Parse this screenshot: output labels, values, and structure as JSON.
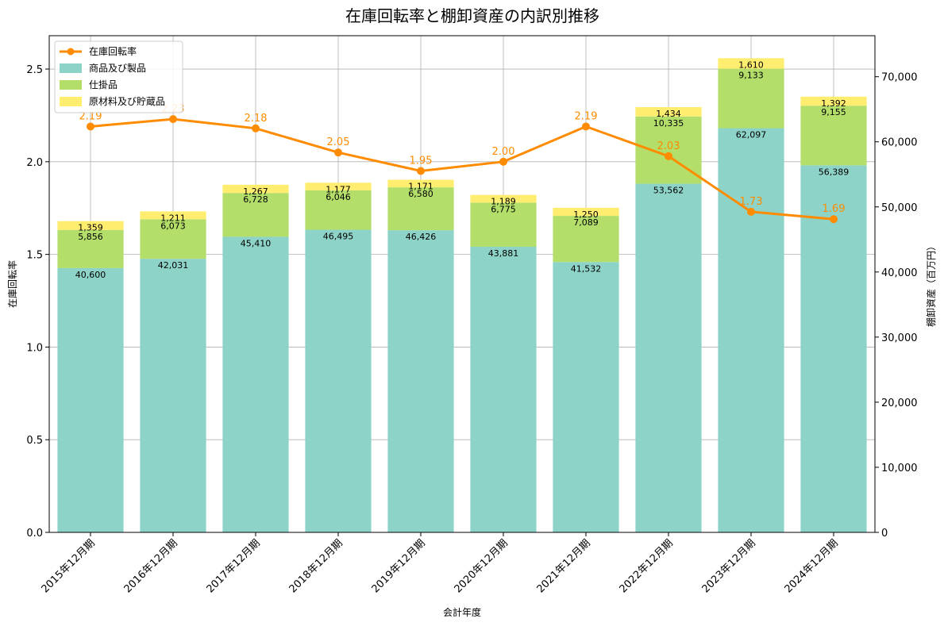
{
  "chart_data": {
    "type": "bar",
    "title": "在庫回転率と棚卸資産の内訳別推移",
    "xlabel": "会計年度",
    "ylabel_left": "在庫回転率",
    "ylabel_right": "棚卸資産（百万円）",
    "categories": [
      "2015年12月期",
      "2016年12月期",
      "2017年12月期",
      "2018年12月期",
      "2019年12月期",
      "2020年12月期",
      "2021年12月期",
      "2022年12月期",
      "2023年12月期",
      "2024年12月期"
    ],
    "series": [
      {
        "name": "商品及び製品",
        "kind": "bar",
        "axis": "right",
        "color": "#8dd3c7",
        "values": [
          40600,
          42031,
          45410,
          46495,
          46426,
          43881,
          41532,
          53562,
          62097,
          56389
        ],
        "labels": [
          "40,600",
          "42,031",
          "45,410",
          "46,495",
          "46,426",
          "43,881",
          "41,532",
          "53,562",
          "62,097",
          "56,389"
        ]
      },
      {
        "name": "仕掛品",
        "kind": "bar",
        "axis": "right",
        "color": "#b3de69",
        "values": [
          5856,
          6073,
          6728,
          6046,
          6580,
          6775,
          7089,
          10335,
          9133,
          9155
        ],
        "labels": [
          "5,856",
          "6,073",
          "6,728",
          "6,046",
          "6,580",
          "6,775",
          "7,089",
          "10,335",
          "9,133",
          "9,155"
        ]
      },
      {
        "name": "原材料及び貯蔵品",
        "kind": "bar",
        "axis": "right",
        "color": "#ffed6f",
        "values": [
          1359,
          1211,
          1267,
          1177,
          1171,
          1189,
          1250,
          1434,
          1610,
          1392
        ],
        "labels": [
          "1,359",
          "1,211",
          "1,267",
          "1,177",
          "1,171",
          "1,189",
          "1,250",
          "1,434",
          "1,610",
          "1,392"
        ]
      },
      {
        "name": "在庫回転率",
        "kind": "line",
        "axis": "left",
        "color": "#ff8c00",
        "values": [
          2.19,
          2.23,
          2.18,
          2.05,
          1.95,
          2.0,
          2.19,
          2.03,
          1.73,
          1.69
        ],
        "labels": [
          "2.19",
          "2.23",
          "2.18",
          "2.05",
          "1.95",
          "2.00",
          "2.19",
          "2.03",
          "1.73",
          "1.69"
        ]
      }
    ],
    "ylim_left": [
      0,
      2.68
    ],
    "ylim_right": [
      0,
      76300
    ],
    "yticks_left": [
      "0.0",
      "0.5",
      "1.0",
      "1.5",
      "2.0",
      "2.5"
    ],
    "yticks_left_values": [
      0,
      0.5,
      1.0,
      1.5,
      2.0,
      2.5
    ],
    "yticks_right": [
      "0",
      "10,000",
      "20,000",
      "30,000",
      "40,000",
      "50,000",
      "60,000",
      "70,000"
    ],
    "yticks_right_values": [
      0,
      10000,
      20000,
      30000,
      40000,
      50000,
      60000,
      70000
    ],
    "grid": true,
    "legend_position": "top-left",
    "legend_order": [
      "在庫回転率",
      "商品及び製品",
      "仕掛品",
      "原材料及び貯蔵品"
    ]
  }
}
